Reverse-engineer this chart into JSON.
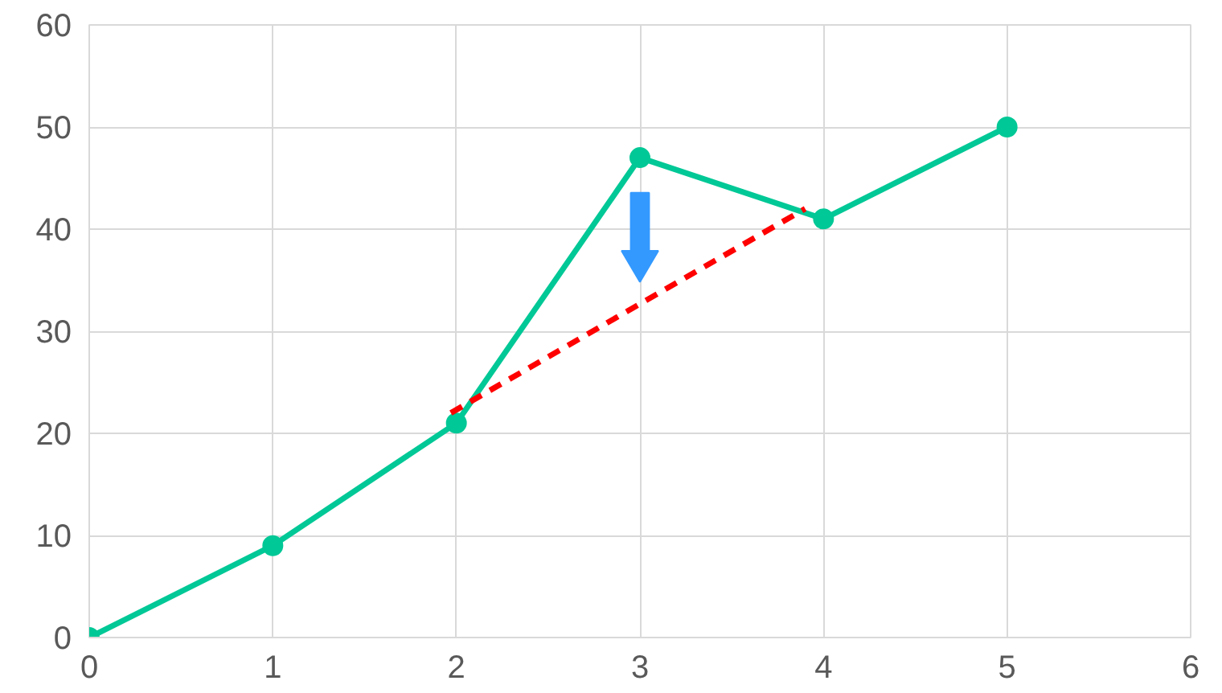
{
  "chart_data": {
    "type": "line",
    "xlim": [
      0,
      6
    ],
    "xticks": [
      0,
      1,
      2,
      3,
      4,
      5,
      6
    ],
    "ylim": [
      0,
      60
    ],
    "yticks": [
      0,
      10,
      20,
      30,
      40,
      50,
      60
    ],
    "grid": true,
    "marker": "circle",
    "line_style": "solid",
    "series": [
      {
        "color": "#00c896",
        "x": [
          0,
          1,
          2,
          3,
          4,
          5
        ],
        "values": [
          0,
          9,
          21,
          47,
          41,
          50
        ]
      },
      {
        "type": "line",
        "color": "#ff0000",
        "line_style": "dashed",
        "marker": "none",
        "x": [
          1.97,
          3.9
        ],
        "values": [
          22,
          42
        ]
      }
    ]
  }
}
